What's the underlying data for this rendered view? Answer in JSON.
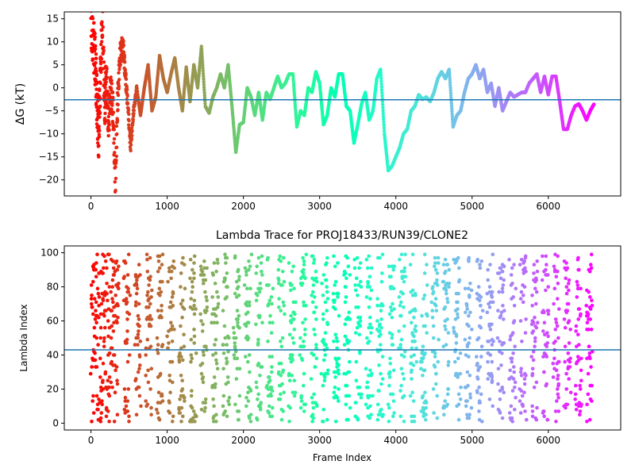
{
  "chart_data": [
    {
      "type": "scatter",
      "title": "",
      "xlabel": "",
      "ylabel": "ΔG (kT)",
      "xlim": [
        -350,
        6950
      ],
      "ylim": [
        -23.5,
        16.5
      ],
      "xticks": [
        0,
        1000,
        2000,
        3000,
        4000,
        5000,
        6000
      ],
      "yticks": [
        -20,
        -15,
        -10,
        -5,
        0,
        5,
        10,
        15
      ],
      "hline": {
        "y": -2.6,
        "color": "#1f77b4"
      },
      "colormap": "rainbow (early frames red, late frames violet)",
      "points": [
        [
          0,
          15.1
        ],
        [
          30,
          10.2
        ],
        [
          60,
          5.0
        ],
        [
          80,
          -4.0
        ],
        [
          100,
          -10.5
        ],
        [
          120,
          0.0
        ],
        [
          150,
          16.0
        ],
        [
          180,
          -5.0
        ],
        [
          200,
          3.0
        ],
        [
          230,
          -8.0
        ],
        [
          260,
          0.0
        ],
        [
          290,
          -5.0
        ],
        [
          320,
          -21.0
        ],
        [
          350,
          -3.0
        ],
        [
          380,
          7.0
        ],
        [
          420,
          9.5
        ],
        [
          450,
          3.0
        ],
        [
          480,
          -3.0
        ],
        [
          520,
          -13.0
        ],
        [
          560,
          -5.0
        ],
        [
          600,
          0.0
        ],
        [
          650,
          -6.0
        ],
        [
          700,
          0.0
        ],
        [
          750,
          5.0
        ],
        [
          800,
          -5.0
        ],
        [
          850,
          -2.0
        ],
        [
          900,
          7.0
        ],
        [
          950,
          2.0
        ],
        [
          1000,
          -1.0
        ],
        [
          1050,
          3.0
        ],
        [
          1100,
          6.5
        ],
        [
          1150,
          0.0
        ],
        [
          1200,
          -5.0
        ],
        [
          1250,
          4.5
        ],
        [
          1300,
          -3.0
        ],
        [
          1350,
          5.0
        ],
        [
          1400,
          0.0
        ],
        [
          1450,
          9.0
        ],
        [
          1500,
          -4.0
        ],
        [
          1550,
          -5.5
        ],
        [
          1600,
          -2.0
        ],
        [
          1650,
          0.0
        ],
        [
          1700,
          3.0
        ],
        [
          1750,
          0.0
        ],
        [
          1800,
          5.0
        ],
        [
          1850,
          -4.0
        ],
        [
          1900,
          -14.0
        ],
        [
          1950,
          -8.0
        ],
        [
          2000,
          -7.5
        ],
        [
          2050,
          0.0
        ],
        [
          2100,
          -2.0
        ],
        [
          2150,
          -6.0
        ],
        [
          2200,
          -1.0
        ],
        [
          2250,
          -7.0
        ],
        [
          2300,
          -1.0
        ],
        [
          2350,
          -2.5
        ],
        [
          2400,
          0.0
        ],
        [
          2450,
          2.5
        ],
        [
          2500,
          0.0
        ],
        [
          2550,
          1.0
        ],
        [
          2600,
          3.0
        ],
        [
          2650,
          3.0
        ],
        [
          2700,
          -8.5
        ],
        [
          2750,
          -5.0
        ],
        [
          2800,
          -6.0
        ],
        [
          2850,
          0.0
        ],
        [
          2900,
          -1.0
        ],
        [
          2950,
          3.5
        ],
        [
          3000,
          1.0
        ],
        [
          3050,
          -8.0
        ],
        [
          3100,
          -6.0
        ],
        [
          3150,
          0.0
        ],
        [
          3200,
          -2.0
        ],
        [
          3250,
          3.0
        ],
        [
          3300,
          3.0
        ],
        [
          3350,
          -4.0
        ],
        [
          3400,
          -5.0
        ],
        [
          3450,
          -12.0
        ],
        [
          3500,
          -8.0
        ],
        [
          3550,
          -3.5
        ],
        [
          3600,
          -1.0
        ],
        [
          3650,
          -7.0
        ],
        [
          3700,
          -5.0
        ],
        [
          3750,
          2.0
        ],
        [
          3800,
          4.0
        ],
        [
          3850,
          -10.0
        ],
        [
          3900,
          -18.0
        ],
        [
          3950,
          -17.0
        ],
        [
          4000,
          -15.0
        ],
        [
          4050,
          -13.0
        ],
        [
          4100,
          -10.0
        ],
        [
          4150,
          -9.0
        ],
        [
          4200,
          -5.0
        ],
        [
          4250,
          -4.0
        ],
        [
          4300,
          -1.5
        ],
        [
          4350,
          -2.5
        ],
        [
          4400,
          -2.0
        ],
        [
          4450,
          -3.0
        ],
        [
          4500,
          -1.0
        ],
        [
          4550,
          2.0
        ],
        [
          4600,
          3.5
        ],
        [
          4650,
          2.0
        ],
        [
          4700,
          4.0
        ],
        [
          4750,
          -8.5
        ],
        [
          4800,
          -6.0
        ],
        [
          4850,
          -5.0
        ],
        [
          4900,
          -1.0
        ],
        [
          4950,
          2.0
        ],
        [
          5000,
          3.0
        ],
        [
          5050,
          5.0
        ],
        [
          5100,
          2.0
        ],
        [
          5150,
          4.0
        ],
        [
          5200,
          -1.0
        ],
        [
          5250,
          1.0
        ],
        [
          5300,
          -4.0
        ],
        [
          5350,
          0.0
        ],
        [
          5400,
          -5.0
        ],
        [
          5450,
          -3.0
        ],
        [
          5500,
          -1.0
        ],
        [
          5550,
          -2.0
        ],
        [
          5600,
          -1.5
        ],
        [
          5650,
          -1.0
        ],
        [
          5700,
          -1.0
        ],
        [
          5750,
          1.0
        ],
        [
          5800,
          2.0
        ],
        [
          5850,
          3.0
        ],
        [
          5900,
          -1.0
        ],
        [
          5950,
          2.5
        ],
        [
          6000,
          -1.5
        ],
        [
          6050,
          2.5
        ],
        [
          6100,
          2.5
        ],
        [
          6150,
          -3.0
        ],
        [
          6200,
          -9.0
        ],
        [
          6250,
          -9.0
        ],
        [
          6300,
          -6.0
        ],
        [
          6350,
          -4.0
        ],
        [
          6400,
          -3.5
        ],
        [
          6450,
          -5.0
        ],
        [
          6500,
          -7.0
        ],
        [
          6550,
          -5.0
        ],
        [
          6600,
          -3.5
        ]
      ]
    },
    {
      "type": "scatter",
      "title": "Lambda Trace for PROJ18433/RUN39/CLONE2",
      "xlabel": "Frame Index",
      "ylabel": "Lambda Index",
      "xlim": [
        -350,
        6950
      ],
      "ylim": [
        -4,
        104
      ],
      "xticks": [
        0,
        1000,
        2000,
        3000,
        4000,
        5000,
        6000
      ],
      "yticks": [
        0,
        20,
        40,
        60,
        80,
        100
      ],
      "hline": {
        "y": 43,
        "color": "#1f77b4"
      },
      "colormap": "rainbow (early frames red, late frames violet)",
      "x_range_covered": [
        0,
        6600
      ],
      "y_range_covered": [
        1,
        99
      ]
    }
  ]
}
